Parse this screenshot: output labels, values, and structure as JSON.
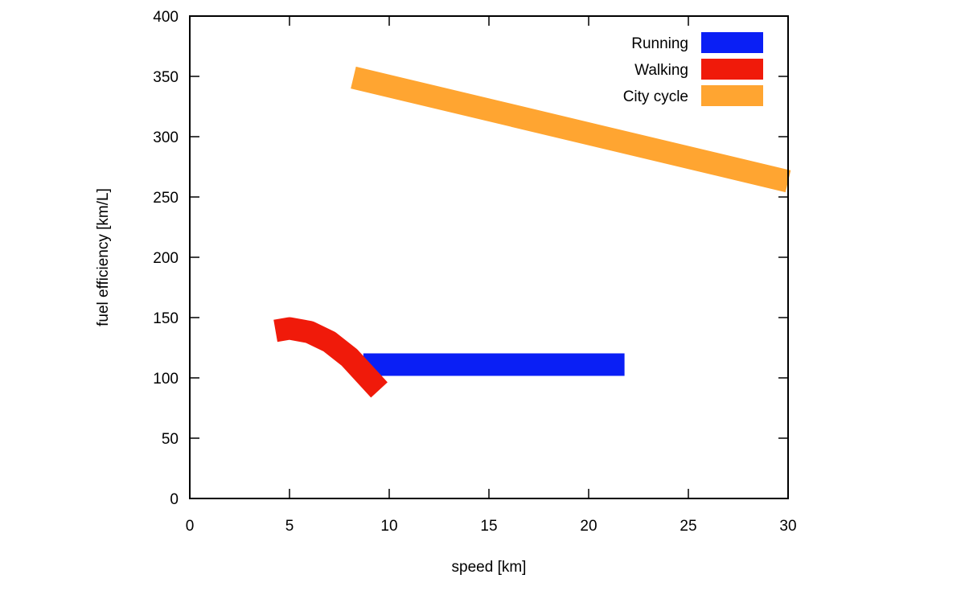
{
  "chart_data": {
    "type": "line",
    "title": "",
    "xlabel": "speed [km]",
    "ylabel": "fuel efficiency [km/L]",
    "xlim": [
      0,
      30
    ],
    "ylim": [
      0,
      400
    ],
    "xticks": [
      0,
      5,
      10,
      15,
      20,
      25,
      30
    ],
    "yticks": [
      0,
      50,
      100,
      150,
      200,
      250,
      300,
      350,
      400
    ],
    "grid": false,
    "legend_position": "top-right",
    "series": [
      {
        "name": "Running",
        "color": "#0a1ff5",
        "x": [
          8.7,
          21.8
        ],
        "y": [
          111,
          111
        ]
      },
      {
        "name": "Walking",
        "color": "#f01a0a",
        "x": [
          4.3,
          5.0,
          6.0,
          7.0,
          8.0,
          9.0,
          9.5
        ],
        "y": [
          139,
          141,
          138,
          130,
          117,
          99,
          90
        ]
      },
      {
        "name": "City cycle",
        "color": "#ffa531",
        "x": [
          8.2,
          30.0
        ],
        "y": [
          349,
          263
        ]
      }
    ]
  }
}
